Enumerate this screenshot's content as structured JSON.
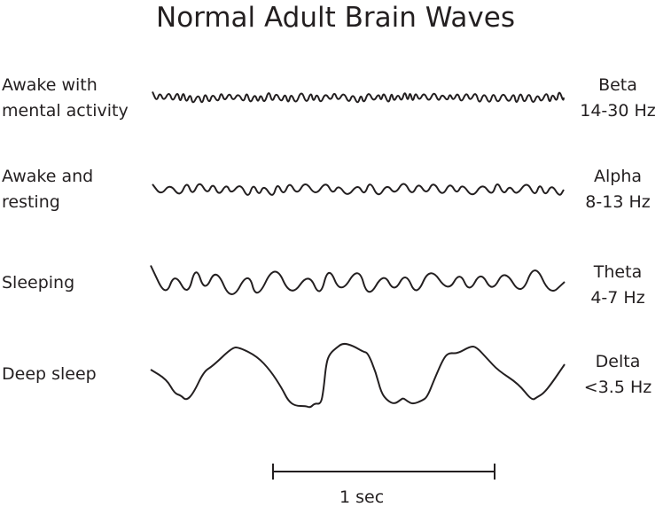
{
  "title": "Normal Adult Brain Waves",
  "rows": [
    {
      "state_lines": [
        "Awake with",
        "mental activity"
      ],
      "wave": "Beta",
      "range": "14-30 Hz"
    },
    {
      "state_lines": [
        "Awake and",
        "resting"
      ],
      "wave": "Alpha",
      "range": "8-13 Hz"
    },
    {
      "state_lines": [
        "Sleeping"
      ],
      "wave": "Theta",
      "range": "4-7 Hz"
    },
    {
      "state_lines": [
        "Deep sleep"
      ],
      "wave": "Delta",
      "range": "<3.5 Hz"
    }
  ],
  "scale_bar_label": "1 sec",
  "line_color": "#231f20"
}
